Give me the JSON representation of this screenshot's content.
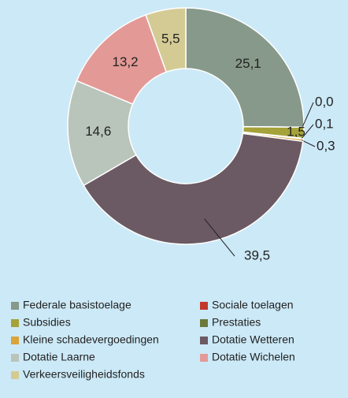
{
  "chart_data": {
    "type": "donut",
    "categories": [
      "Federale basistoelage",
      "Sociale toelagen",
      "Subsidies",
      "Prestaties",
      "Kleine schadevergoedingen",
      "Dotatie Wetteren",
      "Dotatie Laarne",
      "Dotatie Wichelen",
      "Verkeersveiligheidsfonds"
    ],
    "values": [
      25.1,
      0.0,
      1.5,
      0.1,
      0.3,
      39.5,
      14.6,
      13.2,
      5.5
    ],
    "value_labels": [
      "25,1",
      "0,0",
      "1,5",
      "0,1",
      "0,3",
      "39,5",
      "14,6",
      "13,2",
      "5,5"
    ],
    "colors": [
      "#87998a",
      "#c0392b",
      "#a5a23a",
      "#6b7a3a",
      "#d9a43a",
      "#6b5a63",
      "#b9c4bb",
      "#e39a96",
      "#d4cb94"
    ],
    "legend": "bottom"
  }
}
